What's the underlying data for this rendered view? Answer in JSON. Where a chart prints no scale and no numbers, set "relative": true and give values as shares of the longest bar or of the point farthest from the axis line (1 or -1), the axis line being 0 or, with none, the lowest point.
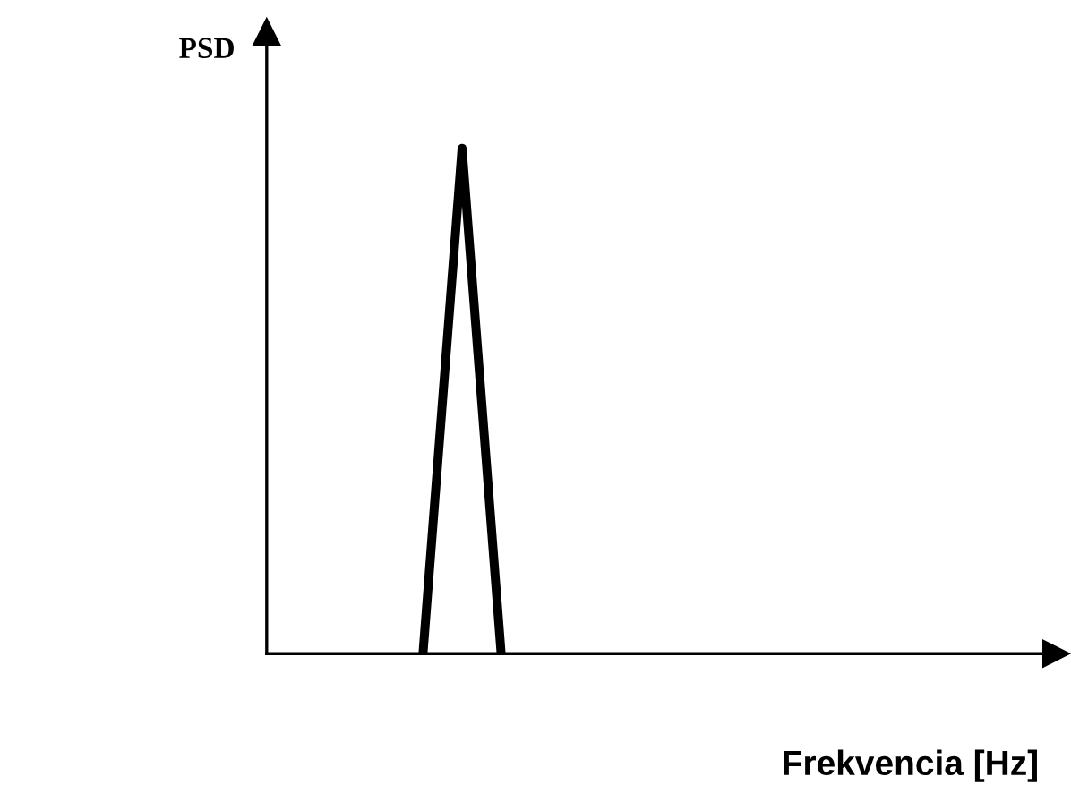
{
  "chart_data": {
    "type": "line",
    "relative": true,
    "ylabel": "PSD",
    "xlabel": "Frekvencia [Hz]",
    "categories": [
      null,
      null,
      null,
      null,
      null,
      null,
      null,
      null,
      null,
      null,
      null,
      null,
      null,
      null,
      null,
      null,
      null,
      null,
      null,
      null
    ],
    "series": [
      {
        "color": "#000000",
        "values": [
          null,
          null,
          null,
          null,
          0,
          1,
          0,
          null,
          null,
          null,
          null,
          null,
          null,
          null,
          null,
          null,
          null,
          null,
          null,
          null
        ]
      }
    ]
  }
}
